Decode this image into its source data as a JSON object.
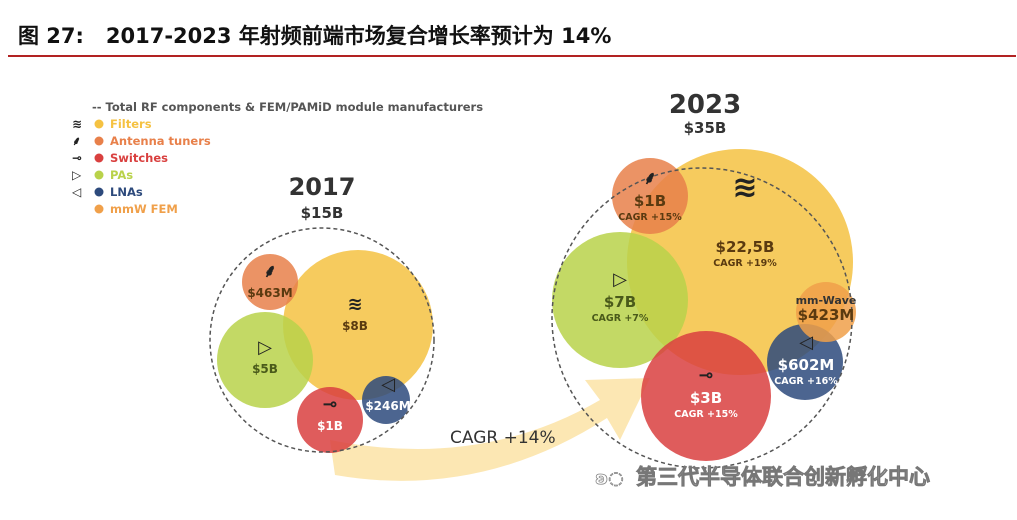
{
  "header": {
    "title": "图 27:   2017-2023 年射频前端市场复合增长率预计为 14%"
  },
  "watermark": "第三代半导体联合创新孵化中心",
  "chart_data": {
    "type": "bubble",
    "legend": {
      "placement": "top-left",
      "items": [
        {
          "label": "-- Total RF components & FEM/PAMiD module manufacturers",
          "color": "#555555",
          "icon": "dashed-line"
        },
        {
          "label": "Filters",
          "color": "#f5c242",
          "icon": "filter-wave-icon"
        },
        {
          "label": "Antenna tuners",
          "color": "#e8804a",
          "icon": "antenna-tuner-icon"
        },
        {
          "label": "Switches",
          "color": "#d9403f",
          "icon": "switch-icon"
        },
        {
          "label": "PAs",
          "color": "#b9d24a",
          "icon": "amplifier-icon"
        },
        {
          "label": "LNAs",
          "color": "#2d4a7c",
          "icon": "lna-icon"
        },
        {
          "label": "mmW FEM",
          "color": "#f0a04a",
          "icon": ""
        }
      ]
    },
    "groups": [
      {
        "year": "2017",
        "total": "$15B",
        "items": [
          {
            "category": "Filters",
            "value": "$8B",
            "cagr": ""
          },
          {
            "category": "Antenna tuners",
            "value": "$463M",
            "cagr": ""
          },
          {
            "category": "PAs",
            "value": "$5B",
            "cagr": ""
          },
          {
            "category": "Switches",
            "value": "$1B",
            "cagr": ""
          },
          {
            "category": "LNAs",
            "value": "$246M",
            "cagr": ""
          }
        ]
      },
      {
        "year": "2023",
        "total": "$35B",
        "items": [
          {
            "category": "Filters",
            "value": "$22,5B",
            "cagr": "CAGR +19%"
          },
          {
            "category": "Antenna tuners",
            "value": "$1B",
            "cagr": "CAGR +15%"
          },
          {
            "category": "PAs",
            "value": "$7B",
            "cagr": "CAGR +7%"
          },
          {
            "category": "Switches",
            "value": "$3B",
            "cagr": "CAGR +15%"
          },
          {
            "category": "LNAs",
            "value": "$602M",
            "cagr": "CAGR +16%"
          },
          {
            "category": "mmW FEM",
            "value": "$423M",
            "cagr": "",
            "label": "mm-Wave"
          }
        ]
      }
    ],
    "arrow_label": "CAGR +14%"
  }
}
